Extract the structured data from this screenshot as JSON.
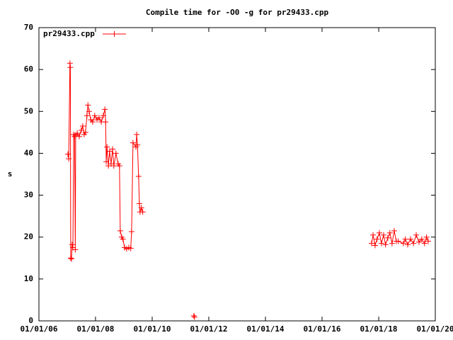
{
  "chart_data": {
    "type": "line",
    "title": "Compile time for -O0 -g for pr29433.cpp",
    "y_label": "s",
    "legend": "top-left",
    "x": [
      "2007-01-10",
      "2007-01-20",
      "2007-02-05",
      "2007-02-10",
      "2007-02-15",
      "2007-02-25",
      "2007-03-05",
      "2007-03-15",
      "2007-03-25",
      "2007-04-05",
      "2007-04-15",
      "2007-04-20",
      "2007-05-10",
      "2007-06-05",
      "2007-07-01",
      "2007-07-20",
      "2007-08-07",
      "2007-08-25",
      "2007-09-12",
      "2007-09-25",
      "2007-10-10",
      "2007-11-01",
      "2007-11-25",
      "2007-12-22",
      "2008-01-20",
      "2008-02-15",
      "2008-03-15",
      "2008-04-10",
      "2008-05-01",
      "2008-05-10",
      "2008-05-18",
      "2008-05-28",
      "2008-06-15",
      "2008-07-01",
      "2008-07-20",
      "2008-08-08",
      "2008-08-25",
      "2008-09-20",
      "2008-10-18",
      "2008-11-05",
      "2008-11-15",
      "2008-12-03",
      "2008-12-20",
      "2009-01-10",
      "2009-02-05",
      "2009-03-05",
      "2009-03-30",
      "2009-04-10",
      "2009-04-28",
      "2009-06-05",
      "2009-06-15",
      "2009-06-25",
      "2009-07-10",
      "2009-07-20",
      "2009-07-28",
      "2009-08-15",
      "2009-09-01",
      "2010-06-01",
      "2011-06-22",
      "2011-07-01",
      "2014-01-01",
      "2017-10-01",
      "2017-10-20",
      "2017-11-15",
      "2017-12-10",
      "2018-01-10",
      "2018-02-05",
      "2018-03-05",
      "2018-03-30",
      "2018-04-28",
      "2018-05-25",
      "2018-06-22",
      "2018-07-20",
      "2018-08-15",
      "2018-09-10",
      "2018-11-15",
      "2018-12-10",
      "2019-01-10",
      "2019-02-15",
      "2019-03-25",
      "2019-04-30",
      "2019-06-05",
      "2019-07-10",
      "2019-08-15",
      "2019-09-10",
      "2019-10-01"
    ],
    "series": [
      {
        "name": "pr29433.cpp",
        "color": "#ff0000",
        "values": [
          39.8,
          38.7,
          61.5,
          60.5,
          15,
          14.8,
          18.2,
          17.5,
          44.5,
          44,
          17,
          44.3,
          44.8,
          44,
          45.5,
          46.5,
          44.5,
          45,
          49,
          51.5,
          50,
          48,
          47.5,
          49,
          48,
          48.5,
          47.5,
          49,
          50.5,
          47.5,
          38,
          41.5,
          37,
          40.5,
          37.5,
          41,
          37,
          40,
          37.5,
          37,
          21.5,
          20,
          19.5,
          17.5,
          17.2,
          17.5,
          17.3,
          21.3,
          42.5,
          41.5,
          44.5,
          42,
          34.5,
          28,
          26,
          27,
          26,
          null,
          1.2,
          0.9,
          null,
          18.5,
          20.5,
          18,
          19.5,
          21,
          18.5,
          20.5,
          18.2,
          19.8,
          21,
          18.5,
          21.5,
          19,
          19,
          18.5,
          19.5,
          18.2,
          19.5,
          18.5,
          20.5,
          18.8,
          19.5,
          18.5,
          20,
          19
        ]
      }
    ],
    "xlim": [
      "2006-01-01",
      "2020-01-01"
    ],
    "xticks": [
      {
        "value": "2006-01-01",
        "label": "01/01/06"
      },
      {
        "value": "2008-01-01",
        "label": "01/01/08"
      },
      {
        "value": "2010-01-01",
        "label": "01/01/10"
      },
      {
        "value": "2012-01-01",
        "label": "01/01/12"
      },
      {
        "value": "2014-01-01",
        "label": "01/01/14"
      },
      {
        "value": "2016-01-01",
        "label": "01/01/16"
      },
      {
        "value": "2018-01-01",
        "label": "01/01/18"
      },
      {
        "value": "2020-01-01",
        "label": "01/01/20"
      }
    ],
    "ylim": [
      0,
      70
    ],
    "yticks": [
      0,
      10,
      20,
      30,
      40,
      50,
      60,
      70
    ],
    "grid": false
  }
}
